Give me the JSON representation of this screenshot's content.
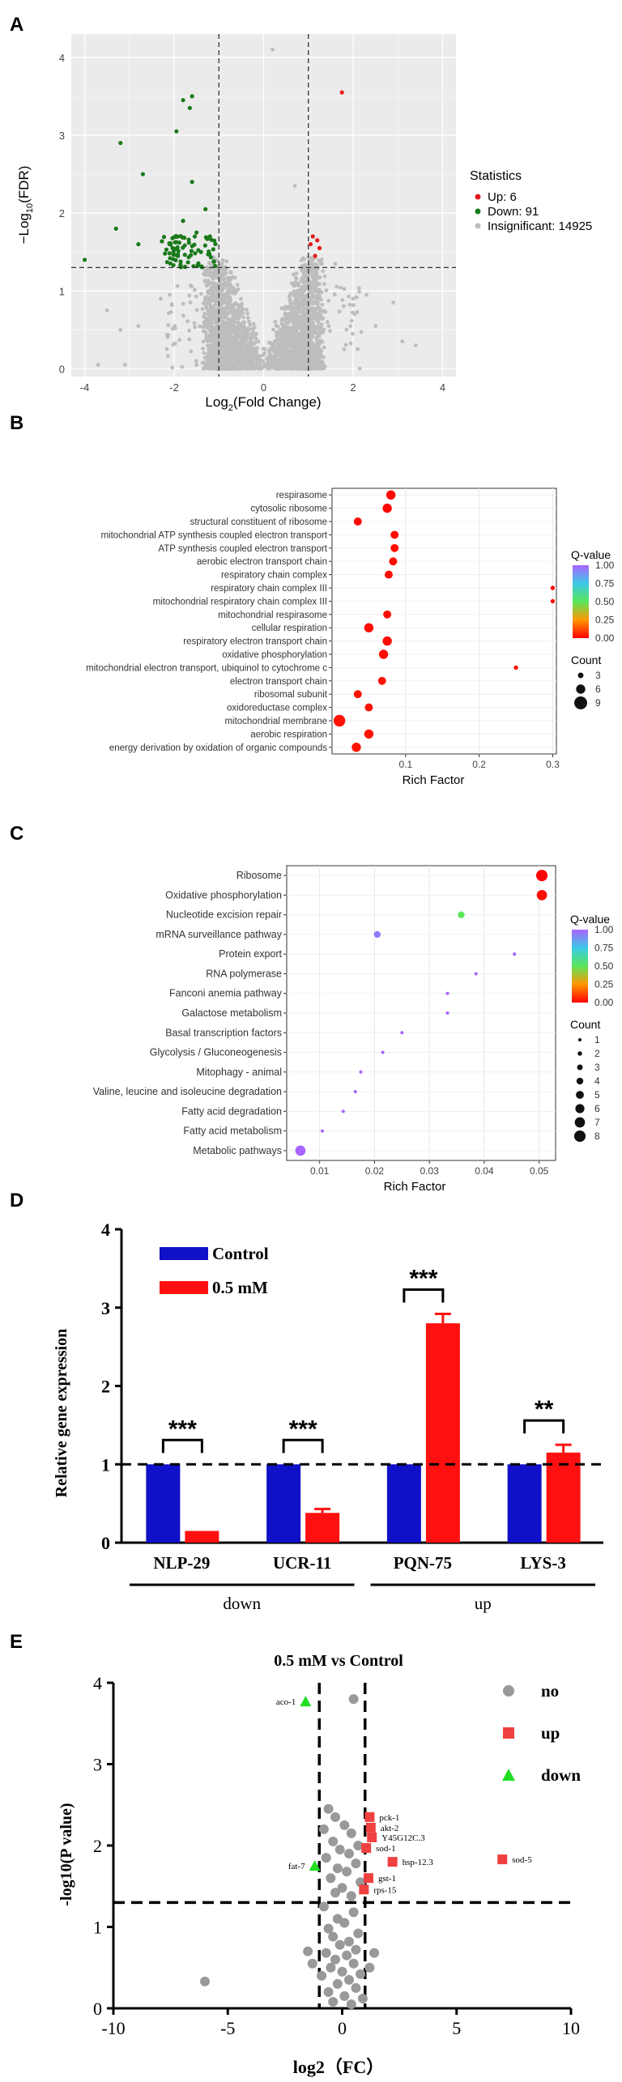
{
  "colors": {
    "up": "#e41a1c",
    "down": "#1a7a1a",
    "insig": "#bdbdbd",
    "control_bar": "#1010c8",
    "treat_bar": "#ff1010",
    "qpcr_up": "#f04040",
    "qpcr_down": "#22dd22",
    "qpcr_no": "#999999",
    "panel_bg": "#ebebeb"
  },
  "chart_data": [
    {
      "panel": "A",
      "type": "scatter",
      "title": "",
      "xlabel_base": "Log",
      "xlabel_sub": "2",
      "xlabel_rest": "(Fold Change)",
      "ylabel_pre": "−Log",
      "ylabel_sub": "10",
      "ylabel_rest": "(FDR)",
      "xlim": [
        -4.3,
        4.3
      ],
      "ylim": [
        -0.1,
        4.3
      ],
      "xticks": [
        -4,
        -2,
        0,
        2,
        4
      ],
      "yticks": [
        0,
        1,
        2,
        3,
        4
      ],
      "vlines": [
        -1,
        1
      ],
      "hline": 1.3,
      "legend_title": "Statistics",
      "legend": [
        {
          "label": "Up: 6",
          "color_key": "up"
        },
        {
          "label": "Down: 91",
          "color_key": "down"
        },
        {
          "label": "Insignificant: 14925",
          "color_key": "insig"
        }
      ],
      "up_points": [
        [
          1.75,
          3.55
        ],
        [
          1.1,
          1.7
        ],
        [
          1.2,
          1.65
        ],
        [
          1.05,
          1.6
        ],
        [
          1.25,
          1.55
        ],
        [
          1.15,
          1.45
        ]
      ],
      "down_points": [
        [
          -1.6,
          3.5
        ],
        [
          -1.8,
          3.45
        ],
        [
          -1.65,
          3.35
        ],
        [
          -1.95,
          3.05
        ],
        [
          -3.2,
          2.9
        ],
        [
          -2.7,
          2.5
        ],
        [
          -1.6,
          2.4
        ],
        [
          -3.3,
          1.8
        ],
        [
          -2.8,
          1.6
        ],
        [
          -4.0,
          1.4
        ],
        [
          -1.3,
          2.05
        ],
        [
          -1.5,
          1.75
        ],
        [
          -1.8,
          1.9
        ],
        [
          -2.1,
          1.6
        ],
        [
          -1.2,
          1.7
        ],
        [
          -1.4,
          1.5
        ]
      ],
      "down_cluster": {
        "x_range": [
          -2.3,
          -1.05
        ],
        "y_range": [
          1.3,
          1.72
        ],
        "count": 75
      },
      "insig_extra": [
        [
          0.2,
          4.1
        ],
        [
          0.7,
          2.35
        ],
        [
          1.6,
          1.35
        ],
        [
          2.3,
          0.95
        ],
        [
          2.5,
          0.55
        ],
        [
          3.4,
          0.3
        ],
        [
          2.9,
          0.85
        ],
        [
          3.1,
          0.35
        ],
        [
          2.0,
          0.9
        ],
        [
          1.8,
          0.25
        ],
        [
          -3.1,
          0.05
        ],
        [
          -3.7,
          0.05
        ],
        [
          -3.5,
          0.75
        ],
        [
          -3.2,
          0.5
        ],
        [
          -2.8,
          0.55
        ],
        [
          -2.3,
          0.9
        ],
        [
          -2.1,
          0.95
        ],
        [
          -0.2,
          0.05
        ],
        [
          0.5,
          0.05
        ],
        [
          -1.5,
          0.05
        ]
      ]
    },
    {
      "panel": "B",
      "type": "scatter",
      "subtype": "dot-enrichment",
      "xlabel": "Rich Factor",
      "xlim": [
        0,
        0.305
      ],
      "xticks": [
        0.1,
        0.2,
        0.3
      ],
      "legend_q_title": "Q-value",
      "legend_q_ticks": [
        "1.00",
        "0.75",
        "0.50",
        "0.25",
        "0.00"
      ],
      "legend_count_title": "Count",
      "legend_count_items": [
        {
          "label": "3",
          "count": 3
        },
        {
          "label": "6",
          "count": 6
        },
        {
          "label": "9",
          "count": 9
        }
      ],
      "terms": [
        "respirasome",
        "cytosolic ribosome",
        "structural constituent of ribosome",
        "mitochondrial ATP synthesis coupled electron transport",
        "ATP synthesis coupled electron transport",
        "aerobic electron transport chain",
        "respiratory chain complex",
        "respiratory chain complex III",
        "mitochondrial respiratory chain complex III",
        "mitochondrial respirasome",
        "cellular respiration",
        "respiratory electron transport chain",
        "oxidative phosphorylation",
        "mitochondrial electron transport, ubiquinol to cytochrome c",
        "electron transport chain",
        "ribosomal subunit",
        "oxidoreductase complex",
        "mitochondrial membrane",
        "aerobic respiration",
        "energy derivation by oxidation of organic compounds"
      ],
      "rich_factor": [
        0.08,
        0.075,
        0.035,
        0.085,
        0.085,
        0.083,
        0.077,
        0.3,
        0.3,
        0.075,
        0.05,
        0.075,
        0.07,
        0.25,
        0.068,
        0.035,
        0.05,
        0.01,
        0.05,
        0.033
      ],
      "count": [
        6,
        6,
        5,
        5,
        5,
        5,
        5,
        2,
        2,
        5,
        6,
        6,
        6,
        2,
        5,
        5,
        5,
        8,
        6,
        6
      ],
      "qvalue": [
        0.01,
        0.01,
        0.01,
        0.02,
        0.02,
        0.02,
        0.02,
        0.02,
        0.02,
        0.02,
        0.02,
        0.02,
        0.02,
        0.03,
        0.03,
        0.03,
        0.03,
        0.03,
        0.03,
        0.03
      ]
    },
    {
      "panel": "C",
      "type": "scatter",
      "subtype": "dot-enrichment",
      "xlabel": "Rich Factor",
      "xlim": [
        0.004,
        0.053
      ],
      "xticks": [
        0.01,
        0.02,
        0.03,
        0.04,
        0.05
      ],
      "legend_q_title": "Q-value",
      "legend_q_ticks": [
        "1.00",
        "0.75",
        "0.50",
        "0.25",
        "0.00"
      ],
      "legend_count_title": "Count",
      "legend_count_items": [
        {
          "label": "1",
          "count": 1
        },
        {
          "label": "2",
          "count": 2
        },
        {
          "label": "3",
          "count": 3
        },
        {
          "label": "4",
          "count": 4
        },
        {
          "label": "5",
          "count": 5
        },
        {
          "label": "6",
          "count": 6
        },
        {
          "label": "7",
          "count": 7
        },
        {
          "label": "8",
          "count": 8
        }
      ],
      "terms": [
        "Ribosome",
        "Oxidative phosphorylation",
        "Nucleotide excision repair",
        "mRNA surveillance pathway",
        "Protein export",
        "RNA polymerase",
        "Fanconi anemia pathway",
        "Galactose metabolism",
        "Basal transcription factors",
        "Glycolysis / Gluconeogenesis",
        "Mitophagy - animal",
        "Valine, leucine and isoleucine degradation",
        "Fatty acid degradation",
        "Fatty acid metabolism",
        "Metabolic pathways"
      ],
      "rich_factor": [
        0.0505,
        0.0505,
        0.0358,
        0.0205,
        0.0455,
        0.0385,
        0.0333,
        0.0333,
        0.025,
        0.0215,
        0.0175,
        0.0165,
        0.0143,
        0.0105,
        0.0065
      ],
      "count": [
        8,
        7,
        4,
        4,
        1,
        1,
        1,
        1,
        1,
        1,
        1,
        1,
        1,
        1,
        7
      ],
      "qvalue": [
        0.0,
        0.02,
        0.5,
        0.95,
        1.0,
        1.0,
        1.0,
        1.0,
        1.0,
        1.0,
        1.0,
        1.0,
        1.0,
        1.0,
        1.0
      ]
    },
    {
      "panel": "D",
      "type": "bar",
      "ylabel": "Relative gene expression",
      "ylim": [
        0,
        4
      ],
      "yticks": [
        0,
        1,
        2,
        3,
        4
      ],
      "categories": [
        "NLP-29",
        "UCR-11",
        "PQN-75",
        "LYS-3"
      ],
      "series": [
        {
          "name": "Control",
          "color_key": "control_bar",
          "values": [
            1.0,
            1.0,
            1.0,
            1.0
          ],
          "errors": [
            0,
            0,
            0,
            0
          ]
        },
        {
          "name": "0.5 mM",
          "color_key": "treat_bar",
          "values": [
            0.15,
            0.38,
            2.8,
            1.15
          ],
          "errors": [
            0,
            0.05,
            0.12,
            0.1
          ]
        }
      ],
      "significance": [
        "***",
        "***",
        "***",
        "**"
      ],
      "group_labels": [
        "down",
        "up"
      ],
      "reference_line": 1
    },
    {
      "panel": "E",
      "type": "scatter",
      "title": "0.5 mM vs Control",
      "xlabel": "log2（FC）",
      "ylabel": "-log10(P value)",
      "xlim": [
        -10,
        10
      ],
      "ylim": [
        0,
        4
      ],
      "xticks": [
        -10,
        -5,
        0,
        5,
        10
      ],
      "yticks": [
        0,
        1,
        2,
        3,
        4
      ],
      "vlines": [
        -1,
        1
      ],
      "hline": 1.3,
      "legend": [
        {
          "label": "no",
          "color_key": "qpcr_no",
          "shape": "circle"
        },
        {
          "label": "up",
          "color_key": "qpcr_up",
          "shape": "square"
        },
        {
          "label": "down",
          "color_key": "qpcr_down",
          "shape": "triangle"
        }
      ],
      "up_genes": [
        {
          "name": "pck-1",
          "x": 1.2,
          "y": 2.35
        },
        {
          "name": "akt-2",
          "x": 1.25,
          "y": 2.22
        },
        {
          "name": "Y45G12C.3",
          "x": 1.3,
          "y": 2.1
        },
        {
          "name": "sod-1",
          "x": 1.05,
          "y": 1.97
        },
        {
          "name": "hsp-12.3",
          "x": 2.2,
          "y": 1.8
        },
        {
          "name": "gst-1",
          "x": 1.15,
          "y": 1.6
        },
        {
          "name": "rps-15",
          "x": 0.95,
          "y": 1.46
        },
        {
          "name": "sod-5",
          "x": 7.0,
          "y": 1.83
        }
      ],
      "down_genes": [
        {
          "name": "aco-1",
          "x": -1.6,
          "y": 3.77
        },
        {
          "name": "fat-7",
          "x": -1.2,
          "y": 1.75
        }
      ],
      "no_points": [
        [
          -6,
          0.33
        ],
        [
          0.5,
          3.8
        ],
        [
          -0.6,
          2.45
        ],
        [
          -0.3,
          2.35
        ],
        [
          0.1,
          2.25
        ],
        [
          -0.8,
          2.2
        ],
        [
          0.4,
          2.15
        ],
        [
          -0.4,
          2.05
        ],
        [
          0.7,
          2.0
        ],
        [
          -0.1,
          1.95
        ],
        [
          0.3,
          1.9
        ],
        [
          -0.7,
          1.85
        ],
        [
          0.6,
          1.78
        ],
        [
          -0.2,
          1.72
        ],
        [
          0.2,
          1.68
        ],
        [
          -0.5,
          1.6
        ],
        [
          0.8,
          1.55
        ],
        [
          0.0,
          1.48
        ],
        [
          -0.3,
          1.42
        ],
        [
          0.4,
          1.38
        ],
        [
          -0.8,
          1.25
        ],
        [
          0.5,
          1.18
        ],
        [
          -0.2,
          1.1
        ],
        [
          0.1,
          1.05
        ],
        [
          -0.6,
          0.98
        ],
        [
          0.7,
          0.92
        ],
        [
          -0.4,
          0.88
        ],
        [
          0.3,
          0.82
        ],
        [
          -0.1,
          0.78
        ],
        [
          0.6,
          0.72
        ],
        [
          -0.7,
          0.68
        ],
        [
          0.2,
          0.65
        ],
        [
          -0.3,
          0.6
        ],
        [
          0.5,
          0.55
        ],
        [
          -1.5,
          0.7
        ],
        [
          1.4,
          0.68
        ],
        [
          -0.5,
          0.5
        ],
        [
          0.0,
          0.45
        ],
        [
          0.8,
          0.42
        ],
        [
          -0.9,
          0.4
        ],
        [
          0.3,
          0.35
        ],
        [
          -0.2,
          0.3
        ],
        [
          0.6,
          0.25
        ],
        [
          -0.6,
          0.2
        ],
        [
          0.1,
          0.15
        ],
        [
          0.9,
          0.12
        ],
        [
          -0.4,
          0.08
        ],
        [
          0.4,
          0.05
        ],
        [
          -1.3,
          0.55
        ],
        [
          1.2,
          0.5
        ]
      ]
    }
  ],
  "panel_labels": [
    "A",
    "B",
    "C",
    "D",
    "E"
  ]
}
